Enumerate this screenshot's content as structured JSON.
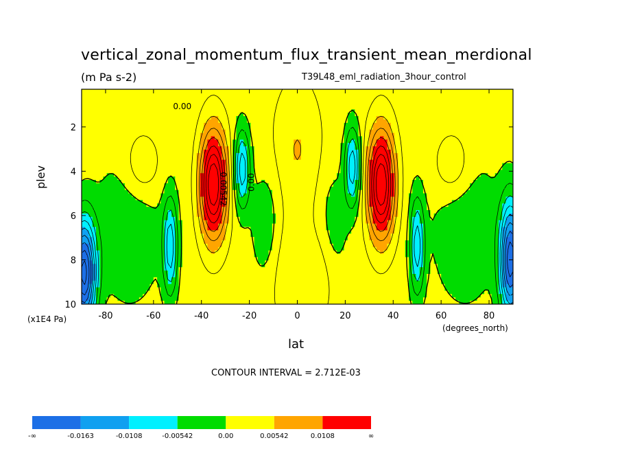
{
  "chart_data": {
    "type": "heatmap",
    "title": "vertical_zonal_momentum_flux_transient_mean_merdional",
    "units": "(m Pa s-2)",
    "run_label": "T39L48_eml_radiation_3hour_control",
    "xlabel": "lat",
    "x_units": "(degrees_north)",
    "ylabel": "plev",
    "y_units": "(x1E4 Pa)",
    "xlim": [
      -90,
      90
    ],
    "ylim": [
      10,
      0.3
    ],
    "x_ticks": [
      -80,
      -60,
      -40,
      -20,
      0,
      20,
      40,
      60,
      80
    ],
    "y_ticks": [
      2,
      4,
      6,
      8,
      10
    ],
    "x_tick_labels": [
      "-80",
      "-60",
      "-40",
      "-20",
      "0",
      "20",
      "40",
      "60",
      "80"
    ],
    "y_tick_labels": [
      "2",
      "4",
      "6",
      "8",
      "10"
    ],
    "contour_interval": "CONTOUR INTERVAL = 2.712E-03",
    "contour_labels": [
      "0.00",
      "0.00542",
      "0.00"
    ],
    "color_levels": [
      "-∞",
      "-0.0163",
      "-0.0108",
      "-0.00542",
      "0.00",
      "0.00542",
      "0.0108",
      "∞"
    ],
    "colors": [
      "#1c6fe6",
      "#10a0f0",
      "#00f0ff",
      "#00dc00",
      "#ffff00",
      "#ffa500",
      "#ff0000"
    ],
    "features": [
      {
        "kind": "max",
        "lat": -35,
        "plev": 4.5,
        "value": 0.0163
      },
      {
        "kind": "max",
        "lat": 35,
        "plev": 4.5,
        "value": 0.0163
      },
      {
        "kind": "min",
        "lat": -87,
        "plev": 8.5,
        "value": -0.0163
      },
      {
        "kind": "min",
        "lat": 87,
        "plev": 8.0,
        "value": -0.0163
      },
      {
        "kind": "min",
        "lat": -53,
        "plev": 7.5,
        "value": -0.0108
      },
      {
        "kind": "min",
        "lat": 50,
        "plev": 7.5,
        "value": -0.0108
      },
      {
        "kind": "min",
        "lat": -22,
        "plev": 4.0,
        "value": -0.0108
      },
      {
        "kind": "min",
        "lat": 23,
        "plev": 3.8,
        "value": -0.0108
      }
    ]
  }
}
